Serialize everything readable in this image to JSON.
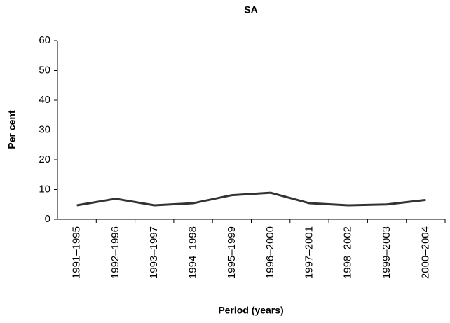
{
  "chart_data": {
    "type": "line",
    "title": "SA",
    "x_label": "Period (years)",
    "y_label": "Per cent",
    "categories": [
      "1991–1995",
      "1992–1996",
      "1993–1997",
      "1994–1998",
      "1995–1999",
      "1996–2000",
      "1997–2001",
      "1998–2002",
      "1999–2003",
      "2000–2004"
    ],
    "values": [
      4.7,
      6.9,
      4.7,
      5.4,
      8.1,
      8.9,
      5.4,
      4.7,
      5.0,
      6.5
    ],
    "color": "#333333",
    "ylim": [
      0,
      60
    ],
    "yticks": [
      0,
      10,
      20,
      30,
      40,
      50,
      60
    ],
    "grid": false
  }
}
